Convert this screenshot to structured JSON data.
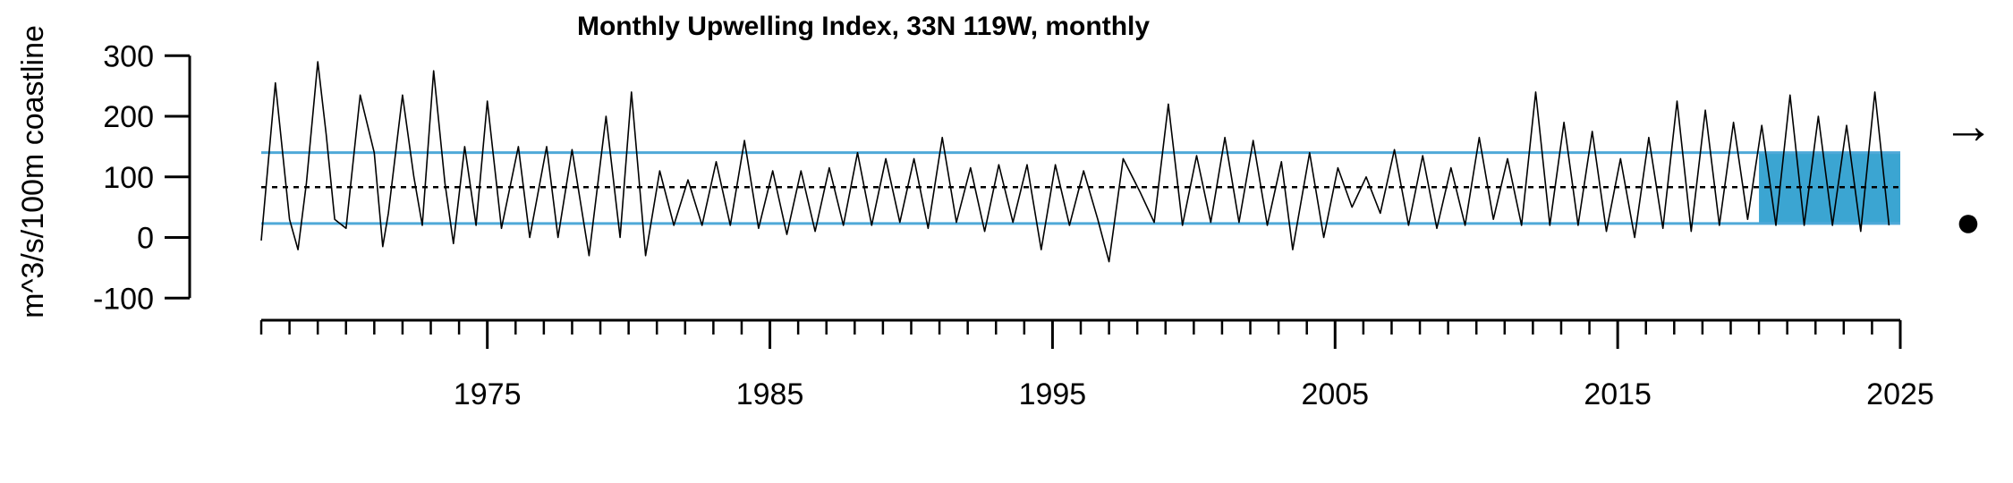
{
  "chart_data": {
    "type": "line",
    "title": "Monthly Upwelling Index, 33N 119W, monthly",
    "ylabel": "m^3/s/100m coastline",
    "xlabel": "",
    "xlim": [
      1967,
      2025
    ],
    "ylim": [
      -100,
      300
    ],
    "x_tick_labels": [
      "1975",
      "1985",
      "1995",
      "2005",
      "2015",
      "2025"
    ],
    "y_tick_labels": [
      "-100",
      "0",
      "100",
      "200",
      "300"
    ],
    "grid": false,
    "series": [
      {
        "values": [
          [
            1967.0,
            -5
          ],
          [
            1967.5,
            255
          ],
          [
            1968.0,
            30
          ],
          [
            1968.3,
            -20
          ],
          [
            1968.6,
            90
          ],
          [
            1969.0,
            290
          ],
          [
            1969.3,
            170
          ],
          [
            1969.6,
            30
          ],
          [
            1970.0,
            15
          ],
          [
            1970.5,
            235
          ],
          [
            1971.0,
            140
          ],
          [
            1971.3,
            -15
          ],
          [
            1971.5,
            40
          ],
          [
            1972.0,
            235
          ],
          [
            1972.4,
            100
          ],
          [
            1972.7,
            20
          ],
          [
            1973.1,
            275
          ],
          [
            1973.5,
            90
          ],
          [
            1973.8,
            -10
          ],
          [
            1974.2,
            150
          ],
          [
            1974.6,
            20
          ],
          [
            1975.0,
            225
          ],
          [
            1975.5,
            15
          ],
          [
            1976.1,
            150
          ],
          [
            1976.5,
            0
          ],
          [
            1977.1,
            150
          ],
          [
            1977.5,
            0
          ],
          [
            1978.0,
            145
          ],
          [
            1978.6,
            -30
          ],
          [
            1979.2,
            200
          ],
          [
            1979.7,
            0
          ],
          [
            1980.1,
            240
          ],
          [
            1980.6,
            -30
          ],
          [
            1981.1,
            110
          ],
          [
            1981.6,
            20
          ],
          [
            1982.1,
            95
          ],
          [
            1982.6,
            20
          ],
          [
            1983.1,
            125
          ],
          [
            1983.6,
            20
          ],
          [
            1984.1,
            160
          ],
          [
            1984.6,
            15
          ],
          [
            1985.1,
            110
          ],
          [
            1985.6,
            5
          ],
          [
            1986.1,
            110
          ],
          [
            1986.6,
            10
          ],
          [
            1987.1,
            115
          ],
          [
            1987.6,
            20
          ],
          [
            1988.1,
            140
          ],
          [
            1988.6,
            20
          ],
          [
            1989.1,
            130
          ],
          [
            1989.6,
            25
          ],
          [
            1990.1,
            130
          ],
          [
            1990.6,
            15
          ],
          [
            1991.1,
            165
          ],
          [
            1991.6,
            25
          ],
          [
            1992.1,
            115
          ],
          [
            1992.6,
            10
          ],
          [
            1993.1,
            120
          ],
          [
            1993.6,
            25
          ],
          [
            1994.1,
            120
          ],
          [
            1994.6,
            -20
          ],
          [
            1995.1,
            120
          ],
          [
            1995.6,
            20
          ],
          [
            1996.1,
            110
          ],
          [
            1996.6,
            30
          ],
          [
            1997.0,
            -40
          ],
          [
            1997.5,
            130
          ],
          [
            1998.1,
            75
          ],
          [
            1998.6,
            25
          ],
          [
            1999.1,
            220
          ],
          [
            1999.6,
            20
          ],
          [
            2000.1,
            135
          ],
          [
            2000.6,
            25
          ],
          [
            2001.1,
            165
          ],
          [
            2001.6,
            25
          ],
          [
            2002.1,
            160
          ],
          [
            2002.6,
            20
          ],
          [
            2003.1,
            125
          ],
          [
            2003.5,
            -20
          ],
          [
            2004.1,
            140
          ],
          [
            2004.6,
            0
          ],
          [
            2005.1,
            115
          ],
          [
            2005.6,
            50
          ],
          [
            2006.1,
            100
          ],
          [
            2006.6,
            40
          ],
          [
            2007.1,
            145
          ],
          [
            2007.6,
            20
          ],
          [
            2008.1,
            135
          ],
          [
            2008.6,
            15
          ],
          [
            2009.1,
            115
          ],
          [
            2009.6,
            20
          ],
          [
            2010.1,
            165
          ],
          [
            2010.6,
            30
          ],
          [
            2011.1,
            130
          ],
          [
            2011.6,
            20
          ],
          [
            2012.1,
            240
          ],
          [
            2012.6,
            20
          ],
          [
            2013.1,
            190
          ],
          [
            2013.6,
            20
          ],
          [
            2014.1,
            175
          ],
          [
            2014.6,
            10
          ],
          [
            2015.1,
            130
          ],
          [
            2015.6,
            0
          ],
          [
            2016.1,
            165
          ],
          [
            2016.6,
            15
          ],
          [
            2017.1,
            225
          ],
          [
            2017.6,
            10
          ],
          [
            2018.1,
            210
          ],
          [
            2018.6,
            20
          ],
          [
            2019.1,
            190
          ],
          [
            2019.6,
            30
          ],
          [
            2020.1,
            185
          ],
          [
            2020.6,
            20
          ],
          [
            2021.1,
            235
          ],
          [
            2021.6,
            20
          ],
          [
            2022.1,
            200
          ],
          [
            2022.6,
            20
          ],
          [
            2023.1,
            185
          ],
          [
            2023.6,
            10
          ],
          [
            2024.1,
            240
          ],
          [
            2024.6,
            20
          ]
        ]
      }
    ],
    "reference_lines": {
      "upper": 140,
      "mean": 83,
      "lower": 23
    },
    "highlight_period": [
      2020.0,
      2025.0
    ],
    "trend_symbol": "→",
    "status_symbol": "●",
    "colors": {
      "band_line": "#4fa9d8",
      "highlight_fill": "#3ba5d2",
      "series": "#000000"
    }
  }
}
